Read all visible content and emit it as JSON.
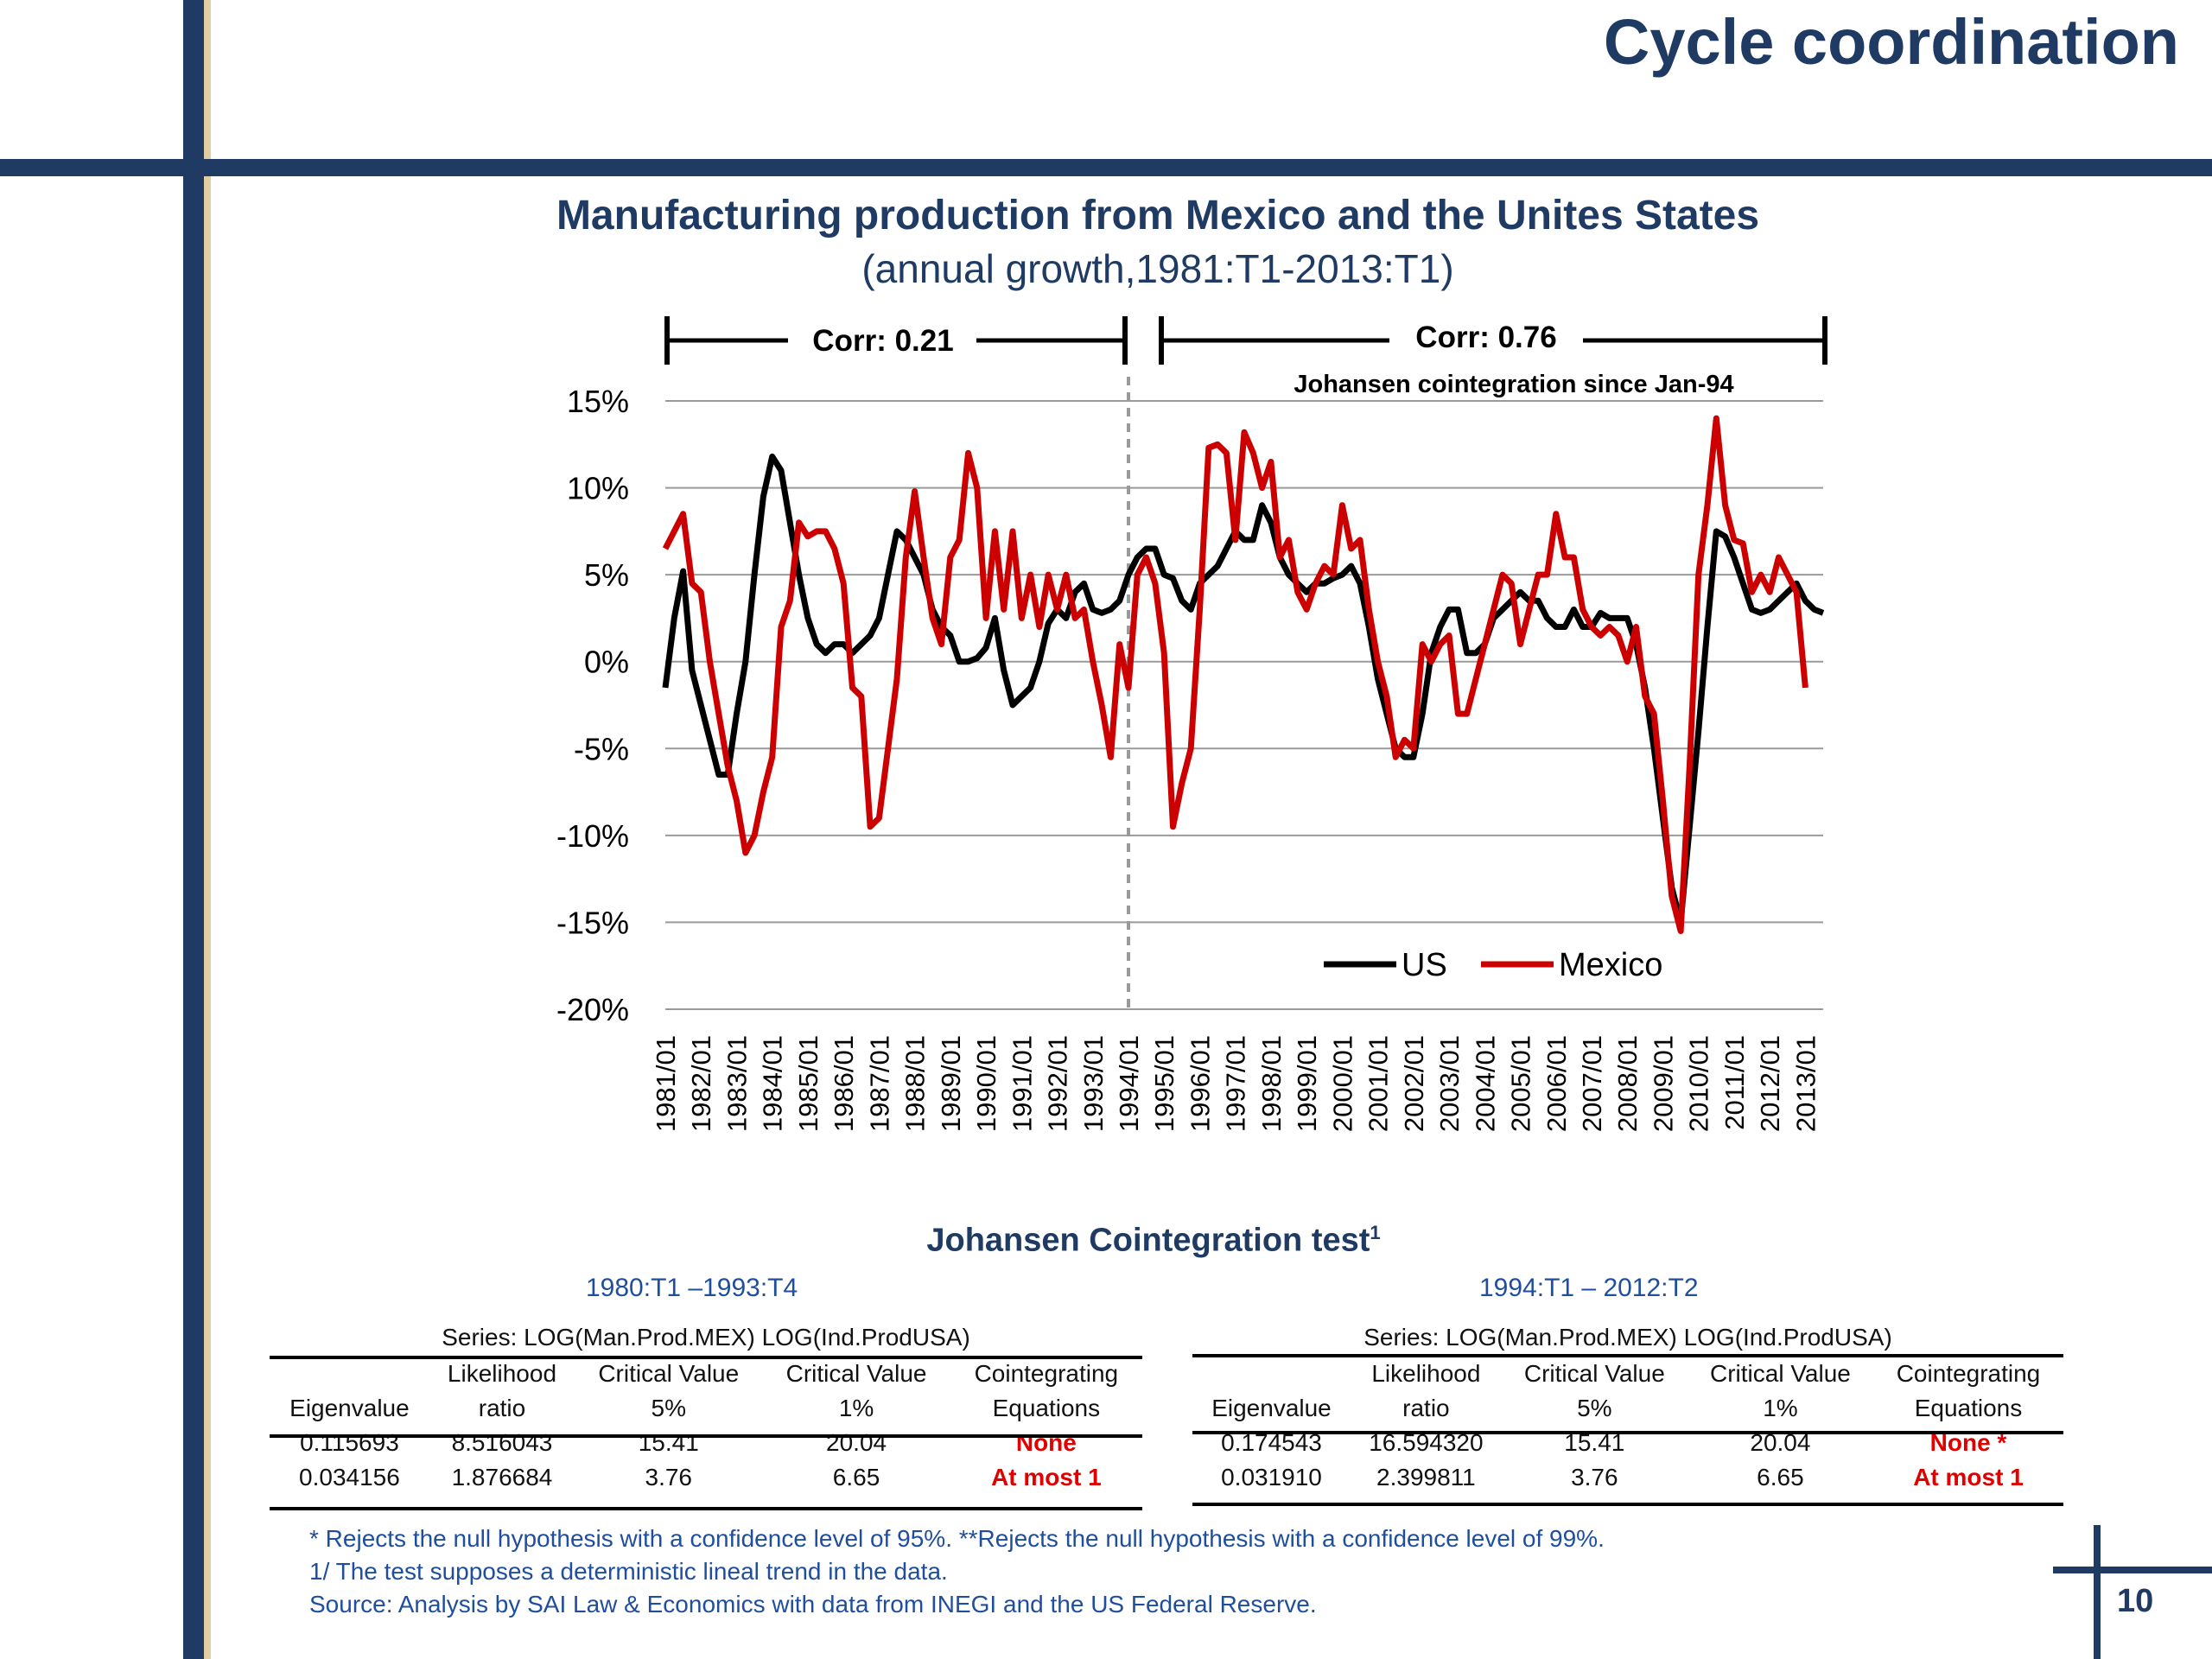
{
  "slide": {
    "title": "Cycle coordination",
    "page_number": "10"
  },
  "chart_data": {
    "type": "line",
    "title": "Manufacturing production from Mexico and the Unites States",
    "subtitle": "(annual growth,1981:T1-2013:T1)",
    "y_ticks": [
      "15%",
      "10%",
      "5%",
      "0%",
      "-5%",
      "-10%",
      "-15%",
      "-20%"
    ],
    "ylim": [
      -20,
      15
    ],
    "x_labels": [
      "1981/01",
      "1982/01",
      "1983/01",
      "1984/01",
      "1985/01",
      "1986/01",
      "1987/01",
      "1988/01",
      "1989/01",
      "1990/01",
      "1991/01",
      "1992/01",
      "1993/01",
      "1994/01",
      "1995/01",
      "1996/01",
      "1997/01",
      "1998/01",
      "1999/01",
      "2000/01",
      "2001/01",
      "2002/01",
      "2003/01",
      "2004/01",
      "2005/01",
      "2006/01",
      "2007/01",
      "2008/01",
      "2009/01",
      "2010/01",
      "2011/01",
      "2012/01",
      "2013/01"
    ],
    "x_start": 1981.0,
    "x_step": 0.25,
    "grid": true,
    "legend": "bottom-right",
    "period_marker": "1994/01",
    "annotations": {
      "corr_left": "Corr:  0.21",
      "corr_right": "Corr:  0.76",
      "cointegration_note": "Johansen cointegration since Jan-94"
    },
    "series": [
      {
        "name": "US",
        "color": "#000000",
        "values": [
          -1.5,
          2.5,
          5.2,
          -0.5,
          -2.5,
          -4.5,
          -6.5,
          -6.5,
          -3,
          0,
          5,
          9.5,
          11.8,
          11,
          8,
          5,
          2.5,
          1,
          0.5,
          1,
          1,
          0.5,
          1,
          1.5,
          2.5,
          5,
          7.5,
          7,
          6,
          5,
          3,
          2,
          1.5,
          0,
          0,
          0.2,
          0.8,
          2.5,
          -0.5,
          -2.5,
          -2,
          -1.5,
          0,
          2.2,
          3,
          2.5,
          4,
          4.5,
          3,
          2.8,
          3,
          3.5,
          5,
          6,
          6.5,
          6.5,
          5,
          4.8,
          3.5,
          3,
          4.5,
          5,
          5.5,
          6.5,
          7.5,
          7,
          7,
          9,
          8,
          6,
          5,
          4.5,
          4,
          4.5,
          4.5,
          4.8,
          5,
          5.5,
          4.5,
          2,
          -1,
          -3,
          -5,
          -5.5,
          -5.5,
          -3,
          0.5,
          2,
          3,
          3,
          0.5,
          0.5,
          1,
          2.5,
          3,
          3.5,
          4,
          3.5,
          3.5,
          2.5,
          2,
          2,
          3,
          2,
          2,
          2.8,
          2.5,
          2.5,
          2.5,
          1,
          -1.5,
          -5,
          -9,
          -13,
          -15,
          -9.5,
          -4,
          2,
          7.5,
          7.2,
          6,
          4.5,
          3,
          2.8,
          3,
          3.5,
          4,
          4.5,
          3.5,
          3,
          2.8
        ]
      },
      {
        "name": "Mexico",
        "color": "#cc0000",
        "values": [
          6.5,
          7.5,
          8.5,
          4.5,
          4,
          0,
          -3,
          -6,
          -8,
          -11,
          -10,
          -7.5,
          -5.5,
          2,
          3.5,
          8,
          7.2,
          7.5,
          7.5,
          6.5,
          4.5,
          -1.5,
          -2,
          -9.5,
          -9,
          -5,
          -1,
          6,
          9.8,
          6,
          2.5,
          1,
          6,
          7,
          12,
          10,
          2.5,
          7.5,
          3,
          7.5,
          2.5,
          5,
          2,
          5,
          3,
          5,
          2.5,
          3,
          0,
          -2.5,
          -5.5,
          1,
          -1.5,
          5,
          6,
          4.5,
          0.5,
          -9.5,
          -7,
          -5,
          3,
          12.3,
          12.5,
          12,
          7,
          13.2,
          12,
          10,
          11.5,
          6,
          7,
          4,
          3,
          4.5,
          5.5,
          5,
          9,
          6.5,
          7,
          3,
          0,
          -2,
          -5.5,
          -4.5,
          -5,
          1,
          0,
          1,
          1.5,
          -3,
          -3,
          -1,
          1,
          3,
          5,
          4.5,
          1,
          3,
          5,
          5,
          8.5,
          6,
          6,
          3,
          2,
          1.5,
          2,
          1.5,
          0,
          2,
          -2,
          -3,
          -8,
          -13.5,
          -15.5,
          -6,
          5,
          9,
          14,
          9,
          7,
          6.8,
          4,
          5,
          4,
          6,
          5,
          4,
          -1.5
        ]
      }
    ]
  },
  "cointegration": {
    "heading": "Johansen Cointegration test",
    "heading_sup": "1",
    "left": {
      "period": "1980:T1 –1993:T4",
      "series_label": "Series: LOG(Man.Prod.MEX) LOG(Ind.ProdUSA)",
      "headers": [
        [
          "Eigenvalue"
        ],
        [
          "Likelihood",
          "ratio"
        ],
        [
          "Critical Value",
          "5%"
        ],
        [
          "Critical Value",
          "1%"
        ],
        [
          "Cointegrating",
          "Equations"
        ]
      ],
      "rows": [
        [
          "0.115693",
          "8.516043",
          "15.41",
          "20.04",
          "None"
        ],
        [
          "0.034156",
          "1.876684",
          "3.76",
          "6.65",
          "At most 1"
        ]
      ]
    },
    "right": {
      "period": "1994:T1 – 2012:T2",
      "series_label": "Series: LOG(Man.Prod.MEX) LOG(Ind.ProdUSA)",
      "headers": [
        [
          "Eigenvalue"
        ],
        [
          "Likelihood",
          "ratio"
        ],
        [
          "Critical Value",
          "5%"
        ],
        [
          "Critical Value",
          "1%"
        ],
        [
          "Cointegrating",
          "Equations"
        ]
      ],
      "rows": [
        [
          "0.174543",
          "16.594320",
          "15.41",
          "20.04",
          "None *"
        ],
        [
          "0.031910",
          "2.399811",
          "3.76",
          "6.65",
          "At most 1"
        ]
      ]
    }
  },
  "footnotes": [
    "* Rejects  the null hypothesis with a confidence level of 95%. **Rejects the null hypothesis with a confidence level of 99%.",
    "1/ The test supposes a deterministic  lineal trend in the data.",
    "Source: Analysis by SAI Law & Economics with data from INEGI and the  US Federal Reserve."
  ]
}
